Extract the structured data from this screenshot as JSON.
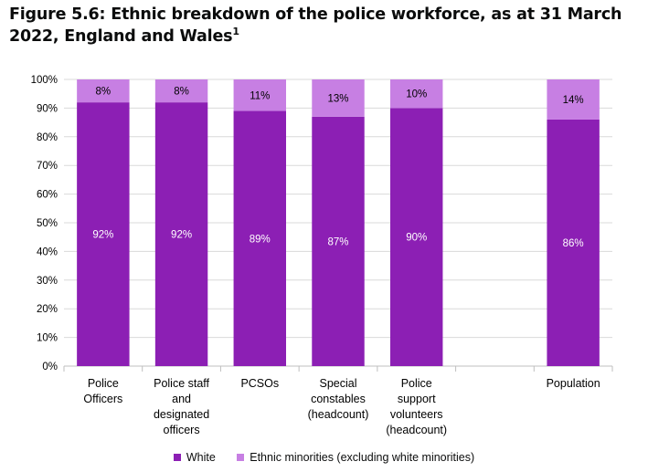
{
  "figure": {
    "title": "Figure 5.6: Ethnic breakdown of the police workforce, as at 31 March 2022, England and Wales",
    "footnote_marker": "1"
  },
  "chart_data": {
    "type": "bar",
    "stacked": true,
    "categories": [
      [
        "Police",
        "Officers"
      ],
      [
        "Police staff",
        "and",
        "designated",
        "officers"
      ],
      [
        "PCSOs"
      ],
      [
        "Special",
        "constables",
        "(headcount)"
      ],
      [
        "Police",
        "support",
        "volunteers",
        "(headcount)"
      ],
      [],
      [
        "Population"
      ]
    ],
    "series": [
      {
        "name": "White",
        "color": "#8c1fb4",
        "label_color": "#ffffff",
        "values": [
          92,
          92,
          89,
          87,
          90,
          null,
          86
        ],
        "labels": [
          "92%",
          "92%",
          "89%",
          "87%",
          "90%",
          "",
          "86%"
        ]
      },
      {
        "name": "Ethnic minorities (excluding white minorities)",
        "color": "#c77fe3",
        "label_color": "#000000",
        "values": [
          8,
          8,
          11,
          13,
          10,
          null,
          14
        ],
        "labels": [
          "8%",
          "8%",
          "11%",
          "13%",
          "10%",
          "",
          "14%"
        ]
      }
    ],
    "ylim": [
      0,
      100
    ],
    "yticks": [
      "0%",
      "10%",
      "20%",
      "30%",
      "40%",
      "50%",
      "60%",
      "70%",
      "80%",
      "90%",
      "100%"
    ],
    "grid": true,
    "legend_position": "bottom"
  }
}
